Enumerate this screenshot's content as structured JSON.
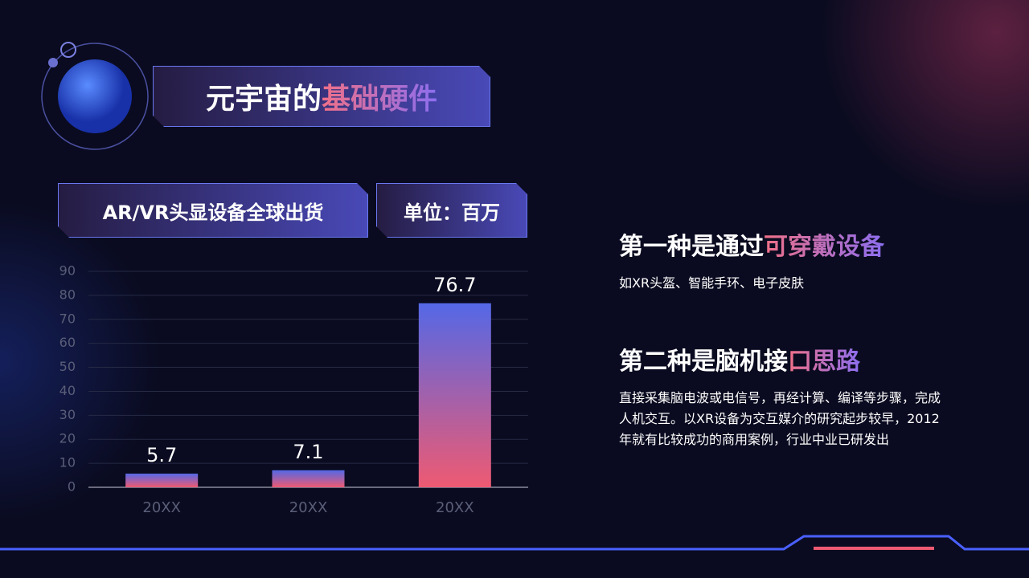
{
  "slide": {
    "title_plain": "元宇宙的",
    "title_highlight": "基础硬件",
    "points": [
      {
        "heading_plain": "第一种是通过",
        "heading_highlight": "可穿戴设备",
        "text": "如XR头盔、智能手环、电子皮肤"
      },
      {
        "heading_plain": "第二种是脑机接",
        "heading_highlight": "口思路",
        "text": "直接采集脑电波或电信号，再经计算、编译等步骤，完成人机交互。以XR设备为交互媒介的研究起步较早，2012年就有比较成功的商用案例，行业中业已研发出"
      }
    ]
  },
  "chart_data": {
    "type": "bar",
    "title": "AR/VR头显设备全球出货",
    "unit": "单位：百万",
    "categories": [
      "20XX",
      "20XX",
      "20XX"
    ],
    "values": [
      5.7,
      7.1,
      76.7
    ],
    "gradient": [
      "#5468e6",
      "#ee5a72"
    ],
    "ylim": [
      0,
      90
    ],
    "yticks": [
      0,
      10,
      20,
      30,
      40,
      50,
      60,
      70,
      80,
      90
    ],
    "grid": true
  }
}
